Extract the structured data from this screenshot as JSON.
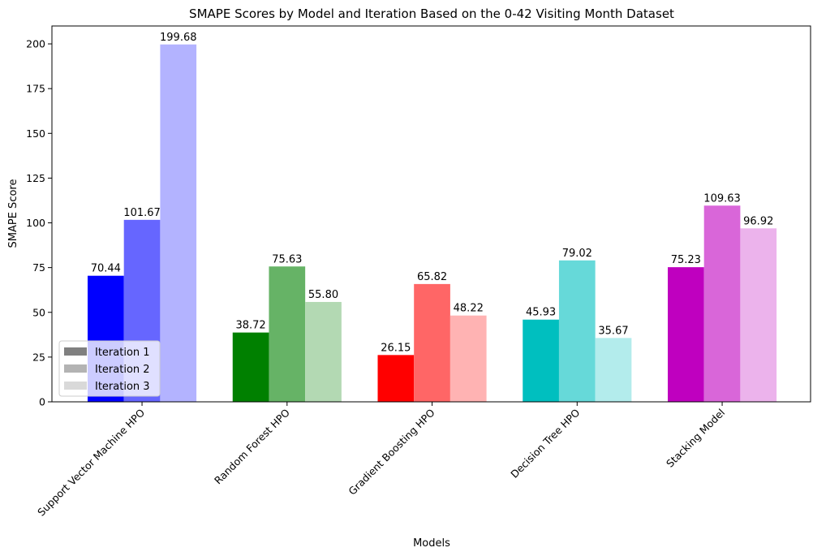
{
  "chart_data": {
    "type": "bar",
    "title": "SMAPE Scores by Model and Iteration Based on the 0-42 Visiting Month Dataset",
    "xlabel": "Models",
    "ylabel": "SMAPE Score",
    "ylim": [
      0,
      210
    ],
    "yticks": [
      0,
      25,
      50,
      75,
      100,
      125,
      150,
      175,
      200
    ],
    "grid": false,
    "legend_position": "lower-left",
    "categories": [
      "Support Vector Machine HPO",
      "Random Forest HPO",
      "Gradient Boosting HPO",
      "Decision Tree HPO",
      "Stacking Model"
    ],
    "series": [
      {
        "name": "Iteration 1",
        "values": [
          70.44,
          38.72,
          26.15,
          45.93,
          75.23
        ],
        "labels": [
          "70.44",
          "38.72",
          "26.15",
          "45.93",
          "75.23"
        ],
        "legend_color": "#808080"
      },
      {
        "name": "Iteration 2",
        "values": [
          101.67,
          75.63,
          65.82,
          79.02,
          109.63
        ],
        "labels": [
          "101.67",
          "75.63",
          "65.82",
          "79.02",
          "109.63"
        ],
        "legend_color": "#b3b3b3"
      },
      {
        "name": "Iteration 3",
        "values": [
          199.68,
          55.8,
          48.22,
          35.67,
          96.92
        ],
        "labels": [
          "199.68",
          "55.80",
          "48.22",
          "35.67",
          "96.92"
        ],
        "legend_color": "#d9d9d9"
      }
    ],
    "colors": [
      [
        "#0000ff",
        "#6666ff",
        "#b3b3ff"
      ],
      [
        "#008000",
        "#66b366",
        "#b3d9b3"
      ],
      [
        "#ff0000",
        "#ff6666",
        "#ffb3b3"
      ],
      [
        "#00bfbf",
        "#66d9d9",
        "#b3ecec"
      ],
      [
        "#bf00bf",
        "#d966d9",
        "#ecb3ec"
      ]
    ]
  }
}
